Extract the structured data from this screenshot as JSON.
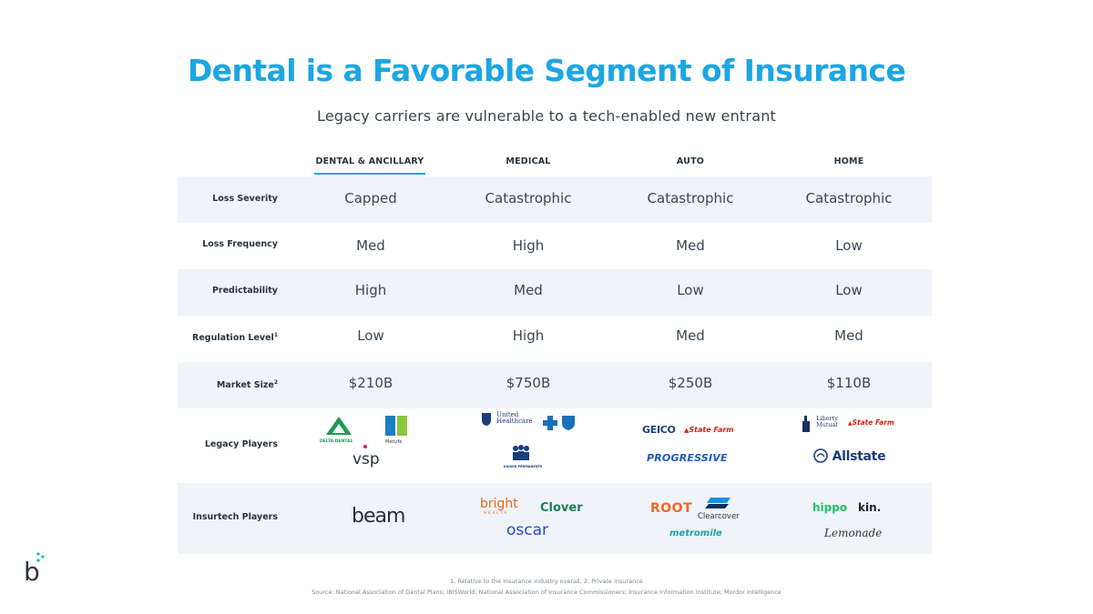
{
  "title": "Dental is a Favorable Segment of Insurance",
  "subtitle": "Legacy carriers are vulnerable to a tech-enabled new entrant",
  "columns": [
    "DENTAL & ANCILLARY",
    "MEDICAL",
    "AUTO",
    "HOME"
  ],
  "rows": [
    {
      "label": "Loss Severity",
      "sup": "",
      "values": [
        "Capped",
        "Catastrophic",
        "Catastrophic",
        "Catastrophic"
      ]
    },
    {
      "label": "Loss Frequency",
      "sup": "",
      "values": [
        "Med",
        "High",
        "Med",
        "Low"
      ]
    },
    {
      "label": "Predictability",
      "sup": "",
      "values": [
        "High",
        "Med",
        "Low",
        "Low"
      ]
    },
    {
      "label": "Regulation Level",
      "sup": "1",
      "values": [
        "Low",
        "High",
        "Med",
        "Med"
      ]
    },
    {
      "label": "Market Size",
      "sup": "2",
      "values": [
        "$210B",
        "$750B",
        "$250B",
        "$110B"
      ]
    }
  ],
  "legacy_label": "Legacy Players",
  "insurtech_label": "Insurtech Players",
  "legacy_logos": {
    "dental": {
      "delta": "DELTA DENTAL",
      "metlife": "MetLife",
      "vsp": "vsp"
    },
    "medical": {
      "united1": "United",
      "united2": "Healthcare",
      "kaiser": "KAISER PERMANENTE"
    },
    "auto": {
      "geico": "GEICO",
      "statefarm": "State Farm",
      "progressive": "PROGRESSIVE"
    },
    "home": {
      "liberty1": "Liberty",
      "liberty2": "Mutual",
      "statefarm": "State Farm",
      "allstate": "Allstate"
    }
  },
  "insurtech_logos": {
    "dental": {
      "beam": "beam"
    },
    "medical": {
      "bright": "bright",
      "health": "HEALTH",
      "clover": "Clover",
      "oscar": "oscar"
    },
    "auto": {
      "root": "ROOT",
      "clearcover": "Clearcover",
      "metromile": "metromile"
    },
    "home": {
      "hippo": "hippo",
      "kin": "kin.",
      "lemonade": "Lemonade"
    }
  },
  "footnote": "1. Relative to the insurance industry overall; 2. Private insurance",
  "source": "Source: National Association of Dental Plans; IBISWorld; National Association of Insurance Commissioners; Insurance Information Institute; Mordor Intelligence",
  "brand": "b",
  "colors": {
    "accent": "#1ca6e3",
    "shade": "#f0f3f7",
    "text": "#2e3a4a",
    "geico_blue": "#173d86",
    "statefarm_red": "#d62311",
    "progressive_blue": "#1a58c7",
    "root_orange": "#f26622",
    "clover_green": "#1e7d56",
    "oscar_blue": "#2149d6",
    "hippo_green": "#22c46b",
    "delta_green": "#1e9b52",
    "metlife_blue": "#1b7fc3",
    "metlife_green": "#8cc63e",
    "bcbs_blue": "#1b6fb8",
    "allstate_navy": "#1d3c78"
  }
}
